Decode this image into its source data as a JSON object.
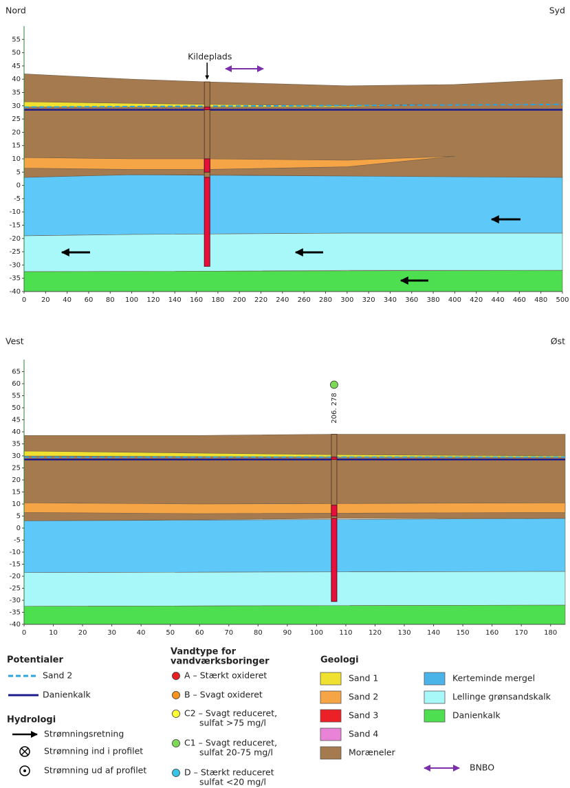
{
  "chart_data": [
    {
      "type": "profile",
      "left_label": "Nord",
      "right_label": "Syd",
      "xlim": [
        0,
        500
      ],
      "xticks": [
        0,
        20,
        40,
        60,
        80,
        100,
        120,
        140,
        160,
        180,
        200,
        220,
        240,
        260,
        280,
        300,
        320,
        340,
        360,
        380,
        400,
        420,
        440,
        460,
        480,
        500
      ],
      "ylim": [
        -40,
        60
      ],
      "yticks": [
        -40,
        -35,
        -30,
        -25,
        -20,
        -15,
        -10,
        -5,
        0,
        5,
        10,
        15,
        20,
        25,
        30,
        35,
        40,
        45,
        50,
        55
      ],
      "layers": [
        {
          "color": "#a47a4e",
          "x": [
            0,
            100,
            170,
            300,
            400,
            500
          ],
          "top": [
            42,
            40,
            39,
            37.5,
            38,
            40
          ],
          "bottom": [
            3,
            4,
            4,
            3.5,
            3,
            3
          ]
        },
        {
          "color": "#5ec8f8",
          "x": [
            0,
            100,
            300,
            500
          ],
          "top": [
            3,
            4,
            3.5,
            3
          ],
          "bottom": [
            -19,
            -18.5,
            -18,
            -18
          ]
        },
        {
          "color": "#a9f8f9",
          "x": [
            0,
            100,
            300,
            500
          ],
          "top": [
            -19,
            -18.5,
            -18,
            -18
          ],
          "bottom": [
            -32.5,
            -32.5,
            -32,
            -32
          ]
        },
        {
          "color": "#4ddf50",
          "x": [
            0,
            500
          ],
          "top": [
            -32.5,
            -32
          ],
          "bottom": [
            -40,
            -40
          ]
        },
        {
          "color": "#f5a545",
          "x": [
            0,
            100,
            170,
            300,
            400
          ],
          "top": [
            10.5,
            10,
            10,
            9.5,
            11
          ],
          "bottom": [
            6.5,
            6,
            6,
            7,
            11
          ]
        },
        {
          "color": "#f0e130",
          "x": [
            0,
            170,
            300,
            370
          ],
          "top": [
            31.5,
            30.5,
            30,
            30.5
          ],
          "bottom": [
            29.5,
            29.5,
            29.5,
            30.5
          ]
        }
      ],
      "potentials": [
        {
          "color": "#2aa4e0",
          "dashed": true,
          "x": [
            0,
            500
          ],
          "values": [
            29.5,
            30.5
          ]
        },
        {
          "color": "#1a1a8c",
          "dashed": false,
          "x": [
            0,
            500
          ],
          "values": [
            28.5,
            28.5
          ]
        }
      ],
      "wells": [
        {
          "x": 170,
          "label": "Kildeplads",
          "casing": [
            39,
            3
          ],
          "casing_color": "#a47a4e",
          "screen_color": "#e8103a",
          "screens": [
            [
              29.5,
              28.5
            ],
            [
              10,
              5
            ],
            [
              3,
              -30.5
            ]
          ]
        }
      ]
    },
    {
      "type": "profile",
      "left_label": "Vest",
      "right_label": "Øst",
      "xlim": [
        0,
        185
      ],
      "xticks": [
        0,
        10,
        20,
        30,
        40,
        50,
        60,
        70,
        80,
        90,
        100,
        110,
        120,
        130,
        140,
        150,
        160,
        170,
        180
      ],
      "ylim": [
        -40,
        70
      ],
      "yticks": [
        -40,
        -35,
        -30,
        -25,
        -20,
        -15,
        -10,
        -5,
        0,
        5,
        10,
        15,
        20,
        25,
        30,
        35,
        40,
        45,
        50,
        55,
        60,
        65
      ],
      "layers": [
        {
          "color": "#a47a4e",
          "x": [
            0,
            60,
            106,
            185
          ],
          "top": [
            38.5,
            38.5,
            39,
            39
          ],
          "bottom": [
            3,
            3.5,
            4,
            4
          ]
        },
        {
          "color": "#5ec8f8",
          "x": [
            0,
            185
          ],
          "top": [
            3,
            4
          ],
          "bottom": [
            -18.5,
            -18
          ]
        },
        {
          "color": "#a9f8f9",
          "x": [
            0,
            185
          ],
          "top": [
            -18.5,
            -18
          ],
          "bottom": [
            -32.5,
            -32
          ]
        },
        {
          "color": "#4ddf50",
          "x": [
            0,
            185
          ],
          "top": [
            -32.5,
            -32
          ],
          "bottom": [
            -40,
            -40
          ]
        },
        {
          "color": "#f5a545",
          "x": [
            0,
            60,
            185
          ],
          "top": [
            10.5,
            10,
            10.5
          ],
          "bottom": [
            6.5,
            6,
            6.5
          ]
        },
        {
          "color": "#f0e130",
          "x": [
            0,
            106,
            185
          ],
          "top": [
            32,
            30.5,
            30
          ],
          "bottom": [
            30,
            29.5,
            29.5
          ]
        }
      ],
      "potentials": [
        {
          "color": "#2aa4e0",
          "dashed": true,
          "x": [
            0,
            185
          ],
          "values": [
            29.5,
            29.5
          ]
        },
        {
          "color": "#1a1a8c",
          "dashed": false,
          "x": [
            0,
            185
          ],
          "values": [
            28.5,
            28.5
          ]
        }
      ],
      "wells": [
        {
          "x": 106,
          "label": "206. 278",
          "marker_color": "#7ed957",
          "casing": [
            39,
            4
          ],
          "casing_color": "#a47a4e",
          "screen_color": "#e8103a",
          "screens": [
            [
              29.5,
              28.5
            ],
            [
              9.5,
              5
            ],
            [
              4,
              -30.5
            ]
          ]
        }
      ]
    }
  ],
  "legend": {
    "potentials": {
      "title": "Potentialer",
      "items": [
        {
          "label": "Sand 2",
          "color": "#2aa4e0",
          "dashed": true
        },
        {
          "label": "Danienkalk",
          "color": "#1a1a8c",
          "dashed": false
        }
      ]
    },
    "hydrology": {
      "title": "Hydrologi",
      "items": [
        "Strømningsretning",
        "Strømning ind i profilet",
        "Strømning ud af profilet"
      ]
    },
    "water_type": {
      "title": [
        "Vandtype for",
        "vandværksboringer"
      ],
      "items": [
        {
          "lines": [
            "A – Stærkt oxideret"
          ],
          "color": "#e81e25"
        },
        {
          "lines": [
            "B – Svagt oxideret"
          ],
          "color": "#f7941d"
        },
        {
          "lines": [
            "C2 – Svagt reduceret,",
            "sulfat >75 mg/l"
          ],
          "color": "#ffff33"
        },
        {
          "lines": [
            "C1 – Svagt reduceret,",
            "sulfat 20-75 mg/l"
          ],
          "color": "#7ed957"
        },
        {
          "lines": [
            "D – Stærkt reduceret",
            "sulfat <20 mg/l"
          ],
          "color": "#36c5e8"
        }
      ]
    },
    "geology": {
      "title": "Geologi",
      "items": [
        {
          "label": "Sand 1",
          "color": "#f0e130"
        },
        {
          "label": "Sand 2",
          "color": "#f5a545"
        },
        {
          "label": "Sand 3",
          "color": "#ec2027"
        },
        {
          "label": "Sand 4",
          "color": "#e983d7"
        },
        {
          "label": "Moræneler",
          "color": "#a47a4e"
        },
        {
          "label": "Kerteminde mergel",
          "color": "#4ab3e8"
        },
        {
          "label": "Lellinge grønsandskalk",
          "color": "#a9f8f9"
        },
        {
          "label": "Danienkalk",
          "color": "#4ddf50"
        }
      ]
    },
    "bnbo": {
      "label": "BNBO",
      "color": "#7b2fa8"
    }
  }
}
